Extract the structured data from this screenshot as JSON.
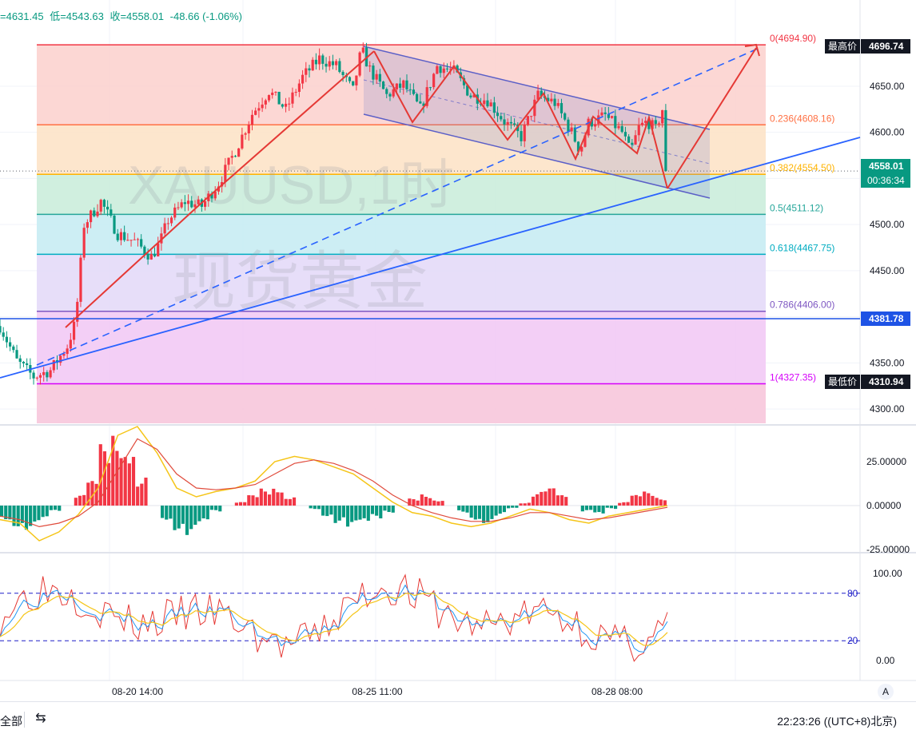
{
  "header": {
    "high": "=4631.45",
    "low_label": "低=4543.63",
    "close_label": "收=4558.01",
    "change": "-48.66 (-1.06%)"
  },
  "watermark": {
    "symbol": "XAUUSD,1时",
    "name": "现货黄金"
  },
  "price_axis": {
    "ticks": [
      "4650.00",
      "4600.00",
      "4550.00",
      "4500.00",
      "4450.00",
      "4400.00",
      "4350.00",
      "4300.00"
    ],
    "high_tag": "最高价",
    "high_value": "4696.74",
    "low_tag": "最低价",
    "low_value": "4310.94",
    "last_price": "4558.01",
    "countdown": "00:36:34",
    "hline_value": "4381.78"
  },
  "macd_axis": {
    "ticks": [
      "25.00000",
      "0.00000",
      "-25.00000"
    ]
  },
  "kdj_axis": {
    "ticks": [
      "100.00",
      "80",
      "20",
      "0.00"
    ]
  },
  "time_axis": {
    "ticks": [
      "08-20 14:00",
      "08-25 11:00",
      "08-28 08:00"
    ]
  },
  "bottom_bar": {
    "range": "全部",
    "clock": "22:23:26 ((UTC+8)北京)"
  },
  "colors": {
    "up": "#f23645",
    "down": "#089981",
    "trend": "#2962ff",
    "channel": "#5b5fc7",
    "arrow": "#e53935"
  },
  "chart_data": {
    "type": "candlestick",
    "symbol": "XAUUSD",
    "interval": "1h",
    "ylim": [
      4288,
      4740
    ],
    "fib_levels": [
      {
        "label": "0(4694.90)",
        "price": 4694.9,
        "color": "#f23645"
      },
      {
        "label": "0.236(4608.16)",
        "price": 4608.16,
        "color": "#ff7043"
      },
      {
        "label": "0.382(4554.50)",
        "price": 4554.5,
        "color": "#ffb300"
      },
      {
        "label": "0.5(4511.12)",
        "price": 4511.12,
        "color": "#26a69a"
      },
      {
        "label": "0.618(4467.75)",
        "price": 4467.75,
        "color": "#00acc1"
      },
      {
        "label": "0.786(4406.00)",
        "price": 4406.0,
        "color": "#7e57c2"
      },
      {
        "label": "1(4327.35)",
        "price": 4327.35,
        "color": "#d500f9"
      }
    ],
    "price_path": [
      [
        0,
        4390
      ],
      [
        10,
        4352
      ],
      [
        20,
        4335
      ],
      [
        30,
        4342
      ],
      [
        40,
        4368
      ],
      [
        45,
        4395
      ],
      [
        50,
        4500
      ],
      [
        60,
        4525
      ],
      [
        70,
        4490
      ],
      [
        80,
        4482
      ],
      [
        90,
        4465
      ],
      [
        95,
        4480
      ],
      [
        100,
        4505
      ],
      [
        110,
        4525
      ],
      [
        120,
        4520
      ],
      [
        130,
        4545
      ],
      [
        140,
        4580
      ],
      [
        150,
        4620
      ],
      [
        160,
        4645
      ],
      [
        170,
        4625
      ],
      [
        180,
        4660
      ],
      [
        190,
        4680
      ],
      [
        200,
        4672
      ],
      [
        205,
        4658
      ],
      [
        210,
        4645
      ],
      [
        215,
        4690
      ],
      [
        220,
        4668
      ],
      [
        230,
        4640
      ],
      [
        240,
        4652
      ],
      [
        250,
        4625
      ],
      [
        260,
        4672
      ],
      [
        270,
        4666
      ],
      [
        280,
        4640
      ],
      [
        290,
        4635
      ],
      [
        300,
        4612
      ],
      [
        310,
        4595
      ],
      [
        320,
        4640
      ],
      [
        330,
        4632
      ],
      [
        340,
        4600
      ],
      [
        345,
        4580
      ],
      [
        350,
        4610
      ],
      [
        360,
        4618
      ],
      [
        370,
        4600
      ],
      [
        375,
        4578
      ],
      [
        380,
        4605
      ],
      [
        385,
        4612
      ],
      [
        390,
        4603
      ],
      [
        394,
        4625
      ],
      [
        397,
        4558
      ]
    ],
    "macd": {
      "bars": [
        -8,
        -12,
        -14,
        -10,
        -4,
        0,
        6,
        14,
        35,
        45,
        40,
        18,
        0,
        -8,
        -14,
        -18,
        -12,
        -4,
        0,
        2,
        6,
        10,
        12,
        6,
        0,
        -2,
        -6,
        -10,
        -14,
        -12,
        -8,
        -4,
        0,
        4,
        7,
        4,
        0,
        -4,
        -8,
        -10,
        -6,
        -2,
        2,
        8,
        10,
        6,
        0,
        -4,
        -6,
        -2,
        2,
        6,
        8,
        5
      ],
      "dif": [
        -8,
        -10,
        -20,
        -15,
        -5,
        10,
        40,
        45,
        30,
        10,
        5,
        8,
        10,
        14,
        25,
        28,
        26,
        22,
        18,
        10,
        2,
        -4,
        -6,
        -10,
        -12,
        -10,
        -6,
        -2,
        -4,
        -8,
        -10,
        -6,
        -4,
        -2,
        0
      ],
      "dea": [
        -6,
        -8,
        -12,
        -10,
        -6,
        2,
        20,
        38,
        32,
        18,
        10,
        9,
        10,
        12,
        18,
        24,
        26,
        24,
        20,
        14,
        6,
        0,
        -4,
        -7,
        -9,
        -9,
        -7,
        -4,
        -4,
        -6,
        -8,
        -7,
        -5,
        -3,
        -1
      ]
    },
    "kdj": {
      "levels": [
        80,
        20
      ],
      "ylim": [
        0,
        100
      ]
    }
  }
}
